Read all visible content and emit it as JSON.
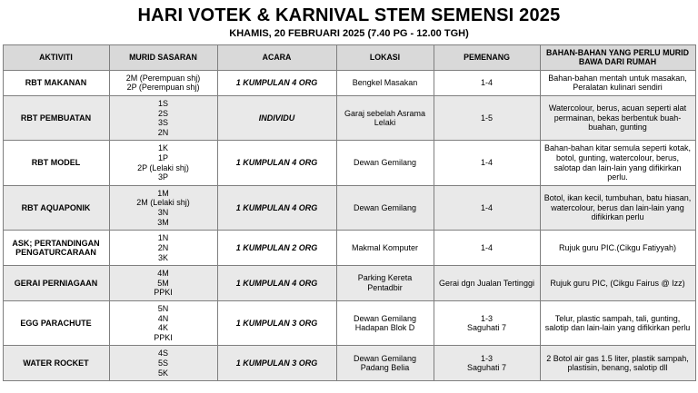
{
  "title": "HARI VOTEK & KARNIVAL STEM SEMENSI 2025",
  "subtitle": "KHAMIS, 20 FEBRUARI 2025 (7.40 PG - 12.00 TGH)",
  "table": {
    "headers": [
      "AKTIVITI",
      "MURID SASARAN",
      "ACARA",
      "LOKASI",
      "PEMENANG",
      "BAHAN-BAHAN YANG PERLU MURID BAWA DARI RUMAH"
    ],
    "rows": [
      {
        "aktiviti": "RBT MAKANAN",
        "murid": "2M (Perempuan shj)\n2P (Perempuan shj)",
        "acara": "1 KUMPULAN 4 ORG",
        "lokasi": "Bengkel Masakan",
        "pemenang": "1-4",
        "bahan": "Bahan-bahan mentah untuk masakan, Peralatan kulinari sendiri"
      },
      {
        "aktiviti": "RBT PEMBUATAN",
        "murid": "1S\n2S\n3S\n2N",
        "acara": "INDIVIDU",
        "lokasi": "Garaj sebelah Asrama Lelaki",
        "pemenang": "1-5",
        "bahan": "Watercolour, berus, acuan seperti alat permainan, bekas berbentuk buah-buahan, gunting"
      },
      {
        "aktiviti": "RBT MODEL",
        "murid": "1K\n1P\n2P (Lelaki shj)\n3P",
        "acara": "1 KUMPULAN 4 ORG",
        "lokasi": "Dewan Gemilang",
        "pemenang": "1-4",
        "bahan": "Bahan-bahan kitar semula seperti kotak, botol, gunting, watercolour, berus, salotap dan lain-lain yang difikirkan perlu."
      },
      {
        "aktiviti": "RBT AQUAPONIK",
        "murid": "1M\n2M (Lelaki shj)\n3N\n3M",
        "acara": "1 KUMPULAN 4 ORG",
        "lokasi": "Dewan Gemilang",
        "pemenang": "1-4",
        "bahan": "Botol, ikan kecil, tumbuhan, batu hiasan, watercolour, berus dan lain-lain yang difikirkan perlu"
      },
      {
        "aktiviti": "ASK; PERTANDINGAN PENGATURCARAAN",
        "murid": "1N\n2N\n3K",
        "acara": "1 KUMPULAN 2 ORG",
        "lokasi": "Makmal Komputer",
        "pemenang": "1-4",
        "bahan": "Rujuk guru PIC.(Cikgu Fatiyyah)"
      },
      {
        "aktiviti": "GERAI PERNIAGAAN",
        "murid": "4M\n5M\nPPKI",
        "acara": "1 KUMPULAN 4 ORG",
        "lokasi": "Parking Kereta Pentadbir",
        "pemenang": "Gerai dgn Jualan Tertinggi",
        "bahan": "Rujuk guru PIC, (Cikgu Fairus @ Izz)"
      },
      {
        "aktiviti": "EGG PARACHUTE",
        "murid": "5N\n4N\n4K\nPPKI",
        "acara": "1 KUMPULAN 3 ORG",
        "lokasi": "Dewan Gemilang Hadapan Blok D",
        "pemenang": "1-3\nSaguhati 7",
        "bahan": "Telur, plastic sampah, tali, gunting, salotip dan lain-lain yang difikirkan perlu"
      },
      {
        "aktiviti": "WATER ROCKET",
        "murid": "4S\n5S\n5K",
        "acara": "1 KUMPULAN 3 ORG",
        "lokasi": "Dewan Gemilang Padang Belia",
        "pemenang": "1-3\nSaguhati 7",
        "bahan": "2 Botol air gas 1.5 liter, plastik sampah, plastisin, benang, salotip dll"
      }
    ]
  }
}
